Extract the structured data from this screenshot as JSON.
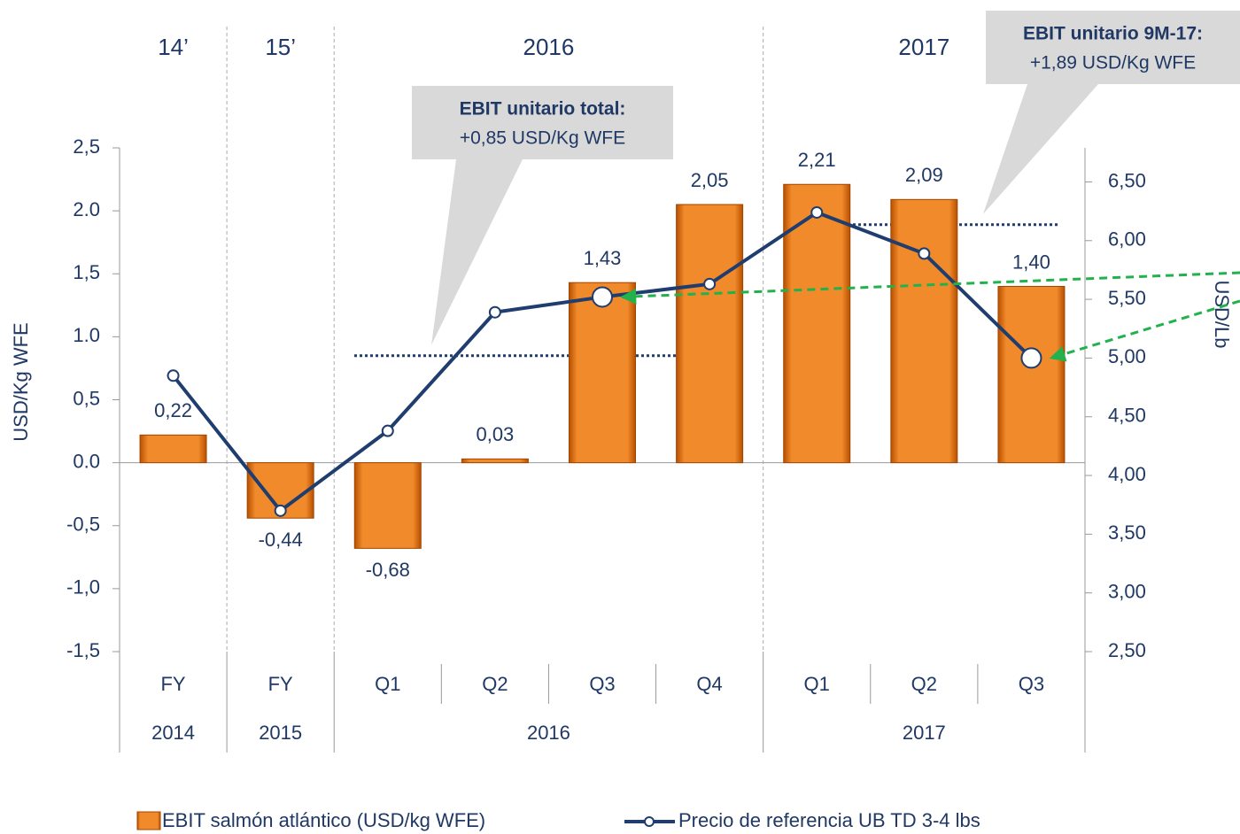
{
  "chart_data": {
    "type": "bar_line",
    "groups": [
      {
        "top": "14’",
        "label": "2014",
        "categories": [
          "FY"
        ]
      },
      {
        "top": "15’",
        "label": "2015",
        "categories": [
          "FY"
        ]
      },
      {
        "top": "2016",
        "label": "2016",
        "categories": [
          "Q1",
          "Q2",
          "Q3",
          "Q4"
        ]
      },
      {
        "top": "2017",
        "label": "2017",
        "categories": [
          "Q1",
          "Q2",
          "Q3"
        ]
      }
    ],
    "series": [
      {
        "name": "EBIT salmón atlántico (USD/kg WFE)",
        "type": "bar",
        "color": "#e46c0a",
        "values": [
          0.22,
          -0.44,
          -0.68,
          0.03,
          1.43,
          2.05,
          2.21,
          2.09,
          1.4
        ],
        "value_labels": [
          "0,22",
          "-0,44",
          "-0,68",
          "0,03",
          "1,43",
          "2,05",
          "2,21",
          "2,09",
          "1,40"
        ]
      },
      {
        "name": "Precio de referencia UB TD 3-4 lbs",
        "type": "line",
        "axis": "y2",
        "color": "#1f3d6e",
        "values": [
          4.85,
          3.7,
          4.38,
          5.39,
          5.52,
          5.63,
          6.24,
          5.89,
          5.0
        ]
      }
    ],
    "ylabel": "USD/Kg WFE",
    "y2label": "USD/Lb",
    "ylim": [
      -1.5,
      2.5
    ],
    "yticks": [
      {
        "value": -1.5,
        "label": "-1,5"
      },
      {
        "value": -1,
        "label": "-1,0"
      },
      {
        "value": -0.5,
        "label": "-0,5"
      },
      {
        "value": 0,
        "label": "0.0"
      },
      {
        "value": 0.5,
        "label": "0,5"
      },
      {
        "value": 1,
        "label": "1.0"
      },
      {
        "value": 1.5,
        "label": "1,5"
      },
      {
        "value": 2,
        "label": "2.0"
      },
      {
        "value": 2.5,
        "label": "2,5"
      }
    ],
    "y2lim": [
      2.5,
      6.79
    ],
    "y2ticks": [
      {
        "value": 2.5,
        "label": "2,50"
      },
      {
        "value": 3,
        "label": "3,00"
      },
      {
        "value": 3.5,
        "label": "3,50"
      },
      {
        "value": 4,
        "label": "4,00"
      },
      {
        "value": 4.5,
        "label": "4,50"
      },
      {
        "value": 5,
        "label": "5,00"
      },
      {
        "value": 5.5,
        "label": "5,50"
      },
      {
        "value": 6,
        "label": "6,00"
      },
      {
        "value": 6.5,
        "label": "6,50"
      }
    ],
    "annotations": [
      {
        "title": "EBIT unitario total:",
        "text": "+0,85 USD/Kg WFE",
        "value": 0.85
      },
      {
        "title": "EBIT unitario 9M-17:",
        "text": "+1,89 USD/Kg WFE",
        "value": 1.89
      }
    ],
    "legend": "bottom"
  }
}
